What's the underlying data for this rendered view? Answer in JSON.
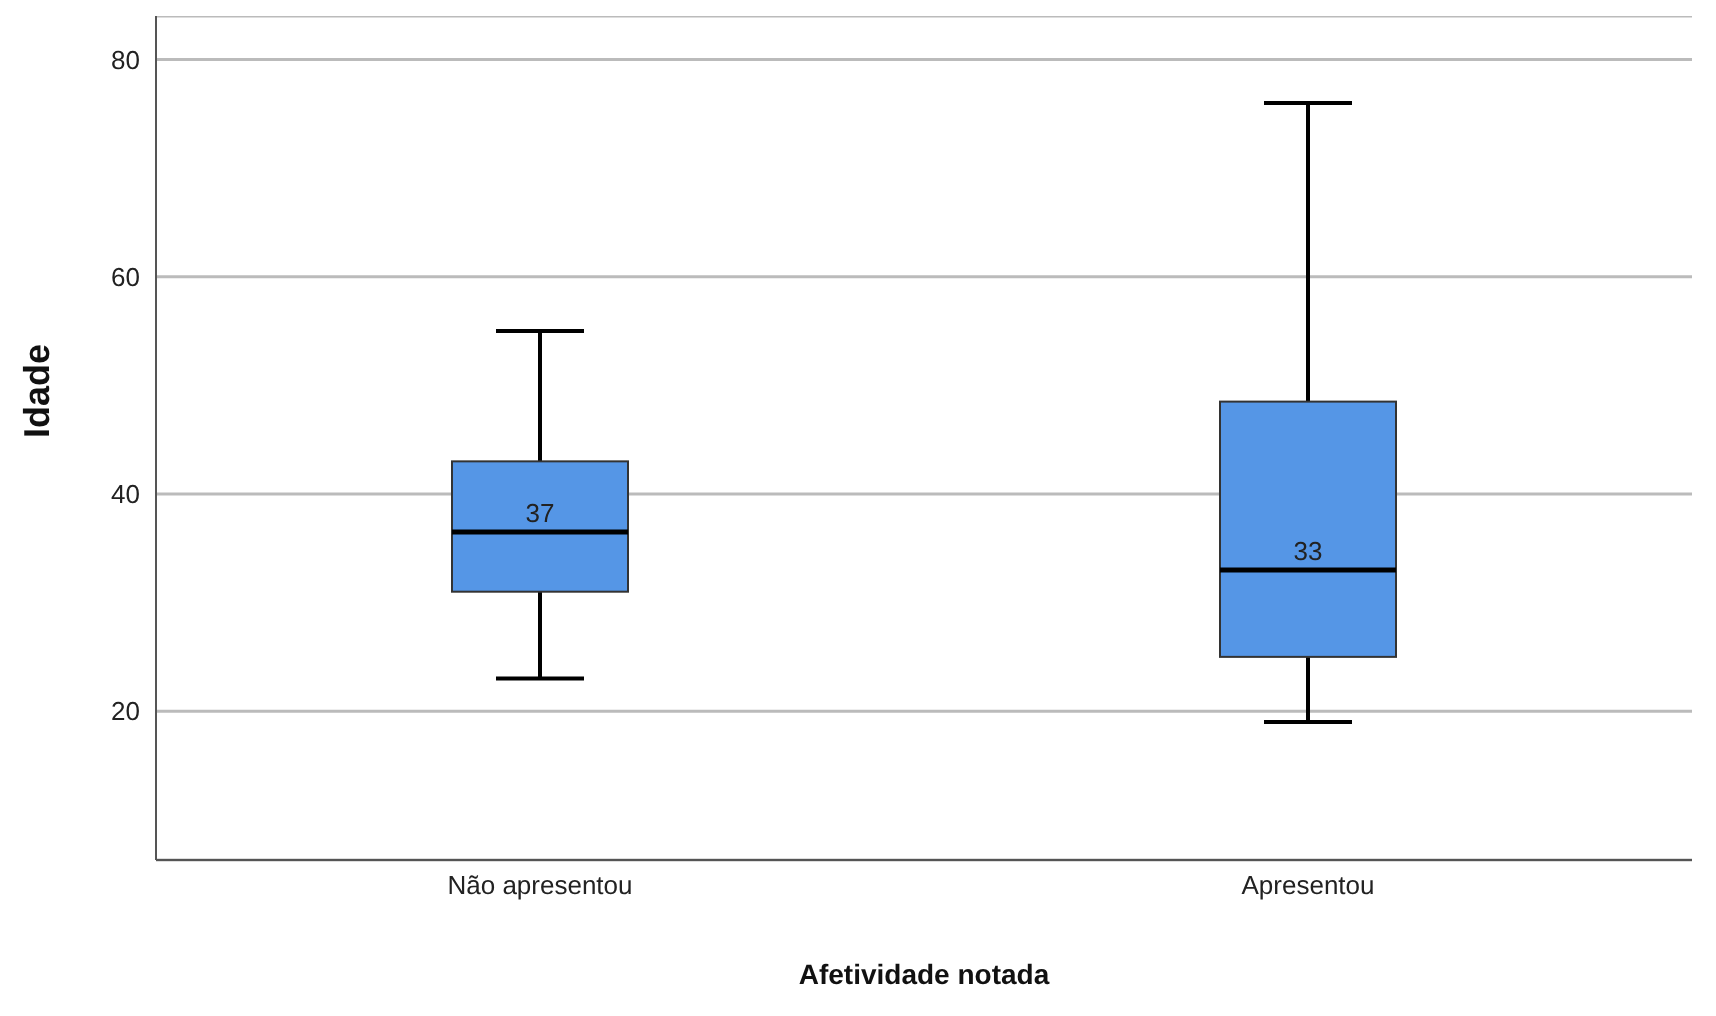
{
  "chart_data": {
    "type": "box",
    "xlabel": "Afetividade notada",
    "ylabel": "Idade",
    "categories": [
      "Não apresentou",
      "Apresentou"
    ],
    "boxes": [
      {
        "low": 23,
        "q1": 31,
        "median": 36.5,
        "q3": 43,
        "high": 55
      },
      {
        "low": 19,
        "q1": 25,
        "median": 33,
        "q3": 48.5,
        "high": 76
      }
    ],
    "value_labels": [
      "37",
      "33"
    ],
    "color": "#5596e6",
    "ylim": [
      6.3,
      84
    ],
    "yticks": [
      20,
      40,
      60,
      80
    ],
    "grid": "y"
  }
}
